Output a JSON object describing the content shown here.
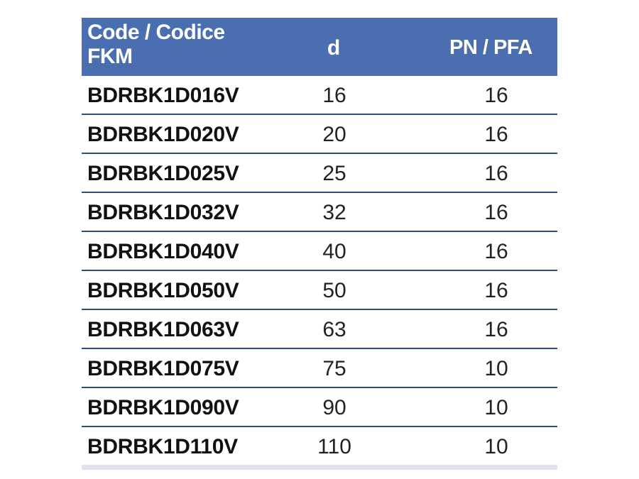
{
  "table": {
    "header": {
      "code_line1": "Code / Codice",
      "code_line2": "FKM",
      "d": "d",
      "pn": "PN / PFA"
    },
    "rows": [
      {
        "code": "BDRBK1D016V",
        "d": "16",
        "pn": "16"
      },
      {
        "code": "BDRBK1D020V",
        "d": "20",
        "pn": "16"
      },
      {
        "code": "BDRBK1D025V",
        "d": "25",
        "pn": "16"
      },
      {
        "code": "BDRBK1D032V",
        "d": "32",
        "pn": "16"
      },
      {
        "code": "BDRBK1D040V",
        "d": "40",
        "pn": "16"
      },
      {
        "code": "BDRBK1D050V",
        "d": "50",
        "pn": "16"
      },
      {
        "code": "BDRBK1D063V",
        "d": "63",
        "pn": "16"
      },
      {
        "code": "BDRBK1D075V",
        "d": "75",
        "pn": "10"
      },
      {
        "code": "BDRBK1D090V",
        "d": "90",
        "pn": "10"
      },
      {
        "code": "BDRBK1D110V",
        "d": "110",
        "pn": "10"
      }
    ],
    "colors": {
      "header_bg": "#4a6eb0",
      "separator": "#2f4d7a",
      "footer": "#dde0ee"
    }
  }
}
